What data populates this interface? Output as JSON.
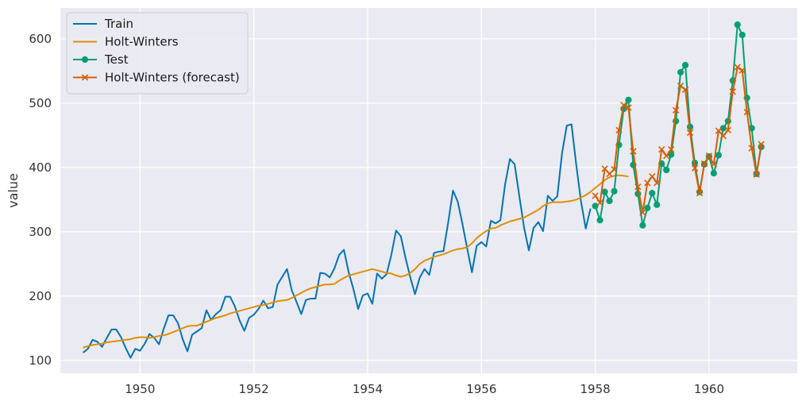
{
  "chart_data": {
    "type": "line",
    "title": "",
    "xlabel": "",
    "ylabel": "value",
    "xlim": [
      1948.6,
      1961.55
    ],
    "ylim": [
      80,
      648
    ],
    "xticks": [
      1950,
      1952,
      1954,
      1956,
      1958,
      1960
    ],
    "yticks": [
      100,
      200,
      300,
      400,
      500,
      600
    ],
    "grid": true,
    "legend_position": "top-left",
    "colors": {
      "background": "#eaeaf2",
      "grid": "#ffffff",
      "train": "#0173b2",
      "holt_winters": "#de8f05",
      "test": "#029e73",
      "forecast": "#d55e00"
    },
    "series": [
      {
        "name": "Train",
        "color": "#0173b2",
        "marker": "none",
        "x_start": 1949.0,
        "x_step": 0.08333,
        "values": [
          112,
          118,
          132,
          129,
          121,
          135,
          148,
          148,
          136,
          119,
          104,
          118,
          115,
          126,
          141,
          135,
          125,
          149,
          170,
          170,
          158,
          133,
          114,
          140,
          145,
          150,
          178,
          163,
          172,
          178,
          199,
          199,
          184,
          162,
          146,
          166,
          171,
          180,
          193,
          181,
          183,
          218,
          230,
          242,
          209,
          191,
          172,
          194,
          196,
          196,
          236,
          235,
          229,
          243,
          264,
          272,
          237,
          211,
          180,
          201,
          204,
          188,
          235,
          227,
          234,
          264,
          302,
          293,
          259,
          229,
          203,
          229,
          242,
          233,
          267,
          269,
          270,
          315,
          364,
          347,
          312,
          274,
          237,
          278,
          284,
          277,
          317,
          313,
          318,
          374,
          413,
          405,
          355,
          306,
          271,
          306,
          315,
          301,
          356,
          348,
          355,
          422,
          465,
          467,
          404,
          347,
          305,
          336
        ]
      },
      {
        "name": "Holt-Winters",
        "color": "#de8f05",
        "marker": "none",
        "x_start": 1949.0,
        "x_step": 0.08333,
        "values": [
          120,
          122,
          124,
          125,
          126,
          128,
          129,
          130,
          131,
          132,
          133,
          135,
          136,
          136,
          135,
          136,
          138,
          139,
          141,
          144,
          147,
          150,
          153,
          154,
          154,
          157,
          160,
          163,
          166,
          168,
          170,
          173,
          175,
          177,
          179,
          181,
          183,
          185,
          186,
          188,
          190,
          192,
          193,
          194,
          197,
          201,
          205,
          209,
          212,
          214,
          216,
          218,
          218,
          219,
          224,
          228,
          232,
          234,
          236,
          238,
          240,
          242,
          240,
          238,
          236,
          235,
          232,
          230,
          232,
          236,
          242,
          250,
          255,
          258,
          261,
          263,
          265,
          268,
          271,
          273,
          274,
          276,
          282,
          290,
          296,
          301,
          305,
          306,
          310,
          313,
          316,
          318,
          320,
          322,
          326,
          330,
          334,
          340,
          344,
          346,
          346,
          346,
          347,
          348,
          350,
          353,
          357,
          362,
          368,
          374,
          380,
          385,
          387,
          388,
          387,
          386
        ]
      },
      {
        "name": "Test",
        "color": "#029e73",
        "marker": "circle",
        "x_start": 1958.0,
        "x_step": 0.08333,
        "values": [
          340,
          318,
          362,
          348,
          363,
          435,
          491,
          505,
          404,
          359,
          310,
          337,
          360,
          342,
          406,
          396,
          420,
          472,
          548,
          559,
          463,
          407,
          362,
          405,
          417,
          391,
          419,
          461,
          472,
          535,
          622,
          606,
          508,
          461,
          390,
          432
        ]
      },
      {
        "name": "Holt-Winters (forecast)",
        "color": "#d55e00",
        "marker": "x",
        "x_start": 1958.0,
        "x_step": 0.08333,
        "values": [
          356,
          345,
          398,
          390,
          397,
          458,
          497,
          493,
          425,
          370,
          330,
          376,
          386,
          376,
          428,
          418,
          428,
          489,
          527,
          521,
          454,
          399,
          360,
          406,
          418,
          405,
          457,
          449,
          458,
          518,
          556,
          551,
          486,
          430,
          389,
          436
        ]
      }
    ]
  }
}
